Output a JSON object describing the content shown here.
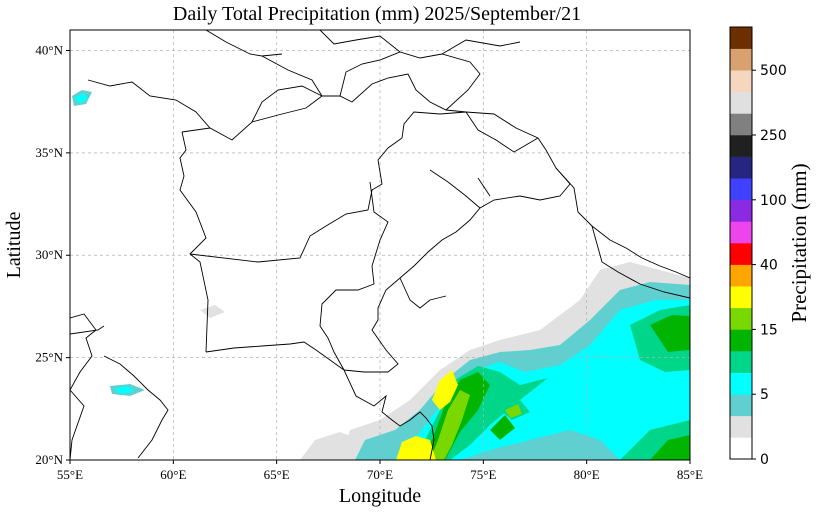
{
  "title": "Daily Total Precipitation (mm)  2025/September/21",
  "xlabel": "Longitude",
  "ylabel": "Latitude",
  "x_ticks": [
    "55°E",
    "60°E",
    "65°E",
    "70°E",
    "75°E",
    "80°E",
    "85°E"
  ],
  "y_ticks": [
    "20°N",
    "25°N",
    "30°N",
    "35°N",
    "40°N"
  ],
  "extent": {
    "lon": [
      55,
      85
    ],
    "lat": [
      20,
      41
    ]
  },
  "colorbar": {
    "label": "Precipitation (mm)",
    "tick_labels": [
      "0",
      "5",
      "15",
      "40",
      "100",
      "250",
      "500"
    ],
    "colors": [
      "#ffffff",
      "#e1e1e1",
      "#5fcfd0",
      "#00ffff",
      "#00d68a",
      "#00b400",
      "#78d800",
      "#ffff00",
      "#ffa500",
      "#ff0000",
      "#ee44ee",
      "#8a2be2",
      "#4040ff",
      "#262680",
      "#202020",
      "#808080",
      "#e0e0e0",
      "#f5d7c0",
      "#d9a070",
      "#6b2f00"
    ]
  },
  "precip_colors": {
    "light": "#e1e1e1",
    "low": "#5fcfd0",
    "cyan": "#00ffff",
    "teal_green": "#00d68a",
    "green": "#00b400",
    "lime": "#78d800",
    "yellow": "#ffff00"
  }
}
